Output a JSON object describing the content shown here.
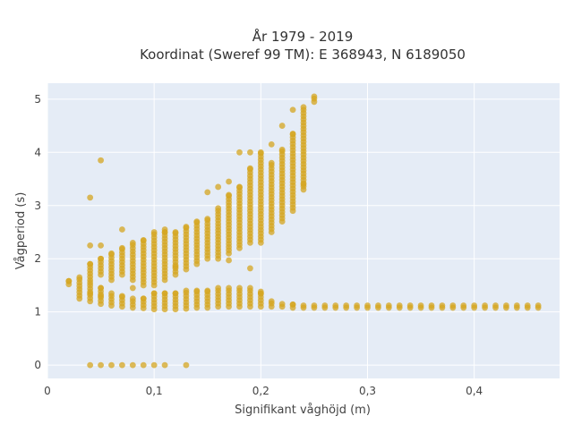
{
  "chart_data": {
    "type": "scatter",
    "title_line1": "År 1979 - 2019",
    "title_line2": "Koordinat (Sweref 99 TM): E 368943, N 6189050",
    "xlabel": "Signifikant våghöjd (m)",
    "ylabel": "Vågperiod (s)",
    "xlim": [
      0,
      0.48
    ],
    "ylim": [
      -0.25,
      5.3
    ],
    "xticks": [
      0,
      0.1,
      0.2,
      0.3,
      0.4
    ],
    "xtick_labels": [
      "0",
      "0,1",
      "0,2",
      "0,3",
      "0,4"
    ],
    "yticks": [
      0,
      1,
      2,
      3,
      4,
      5
    ],
    "ytick_labels": [
      "0",
      "1",
      "2",
      "3",
      "4",
      "5"
    ],
    "grid": true,
    "colors": {
      "marker": "#D4A520",
      "plot_bg": "#E5ECF6",
      "grid": "#FFFFFF"
    },
    "clusters": {
      "zero_band_x": [
        0.04,
        0.05,
        0.06,
        0.07,
        0.08,
        0.09,
        0.1,
        0.11,
        0.13
      ],
      "lower_band": [
        [
          0.02,
          1.52,
          1.58
        ],
        [
          0.03,
          1.25,
          1.65
        ],
        [
          0.04,
          1.2,
          1.55
        ],
        [
          0.05,
          1.15,
          1.45
        ],
        [
          0.06,
          1.12,
          1.35
        ],
        [
          0.07,
          1.1,
          1.3
        ],
        [
          0.08,
          1.08,
          1.25
        ],
        [
          0.09,
          1.07,
          1.25
        ],
        [
          0.1,
          1.05,
          1.35
        ],
        [
          0.11,
          1.05,
          1.35
        ],
        [
          0.12,
          1.05,
          1.35
        ],
        [
          0.13,
          1.06,
          1.4
        ],
        [
          0.14,
          1.08,
          1.4
        ],
        [
          0.15,
          1.08,
          1.4
        ],
        [
          0.16,
          1.1,
          1.45
        ],
        [
          0.17,
          1.1,
          1.45
        ],
        [
          0.18,
          1.1,
          1.45
        ],
        [
          0.19,
          1.1,
          1.45
        ],
        [
          0.2,
          1.1,
          1.38
        ],
        [
          0.21,
          1.1,
          1.2
        ],
        [
          0.22,
          1.1,
          1.15
        ],
        [
          0.23,
          1.08,
          1.14
        ],
        [
          0.24,
          1.08,
          1.12
        ],
        [
          0.25,
          1.08,
          1.12
        ],
        [
          0.26,
          1.08,
          1.12
        ],
        [
          0.27,
          1.08,
          1.12
        ],
        [
          0.28,
          1.08,
          1.12
        ],
        [
          0.29,
          1.08,
          1.12
        ],
        [
          0.3,
          1.08,
          1.12
        ],
        [
          0.31,
          1.08,
          1.12
        ],
        [
          0.32,
          1.08,
          1.12
        ],
        [
          0.33,
          1.08,
          1.12
        ],
        [
          0.34,
          1.08,
          1.12
        ],
        [
          0.35,
          1.08,
          1.12
        ],
        [
          0.36,
          1.08,
          1.12
        ],
        [
          0.37,
          1.08,
          1.12
        ],
        [
          0.38,
          1.08,
          1.12
        ],
        [
          0.39,
          1.08,
          1.12
        ],
        [
          0.4,
          1.08,
          1.12
        ],
        [
          0.41,
          1.08,
          1.12
        ],
        [
          0.42,
          1.08,
          1.12
        ],
        [
          0.43,
          1.08,
          1.12
        ],
        [
          0.44,
          1.08,
          1.12
        ],
        [
          0.45,
          1.08,
          1.12
        ],
        [
          0.46,
          1.08,
          1.12
        ]
      ],
      "upper_band": [
        [
          0.04,
          1.6,
          1.9
        ],
        [
          0.05,
          1.7,
          2.0
        ],
        [
          0.06,
          1.6,
          2.1
        ],
        [
          0.07,
          1.7,
          2.2
        ],
        [
          0.08,
          1.6,
          2.3
        ],
        [
          0.09,
          1.5,
          2.35
        ],
        [
          0.1,
          1.5,
          2.5
        ],
        [
          0.11,
          1.6,
          2.5
        ],
        [
          0.12,
          1.7,
          2.5
        ],
        [
          0.13,
          1.8,
          2.6
        ],
        [
          0.14,
          1.9,
          2.7
        ],
        [
          0.15,
          2.0,
          2.75
        ],
        [
          0.16,
          2.0,
          2.95
        ],
        [
          0.17,
          2.1,
          3.2
        ],
        [
          0.18,
          2.2,
          3.35
        ],
        [
          0.19,
          2.3,
          3.7
        ],
        [
          0.2,
          2.3,
          4.0
        ],
        [
          0.21,
          2.5,
          3.8
        ],
        [
          0.22,
          2.7,
          4.05
        ],
        [
          0.23,
          2.9,
          4.35
        ],
        [
          0.24,
          3.3,
          4.85
        ],
        [
          0.25,
          4.95,
          5.05
        ]
      ],
      "outliers": [
        [
          0.04,
          3.15
        ],
        [
          0.05,
          3.85
        ],
        [
          0.04,
          2.25
        ],
        [
          0.05,
          2.25
        ],
        [
          0.07,
          2.55
        ],
        [
          0.11,
          2.55
        ],
        [
          0.15,
          3.25
        ],
        [
          0.16,
          3.35
        ],
        [
          0.17,
          3.45
        ],
        [
          0.18,
          4.0
        ],
        [
          0.19,
          4.0
        ],
        [
          0.21,
          4.15
        ],
        [
          0.22,
          4.5
        ],
        [
          0.23,
          4.8
        ],
        [
          0.24,
          3.4
        ],
        [
          0.17,
          1.97
        ],
        [
          0.19,
          1.82
        ],
        [
          0.08,
          1.45
        ],
        [
          0.12,
          1.85
        ],
        [
          0.05,
          1.3
        ],
        [
          0.04,
          1.35
        ],
        [
          0.2,
          1.35
        ]
      ]
    }
  }
}
